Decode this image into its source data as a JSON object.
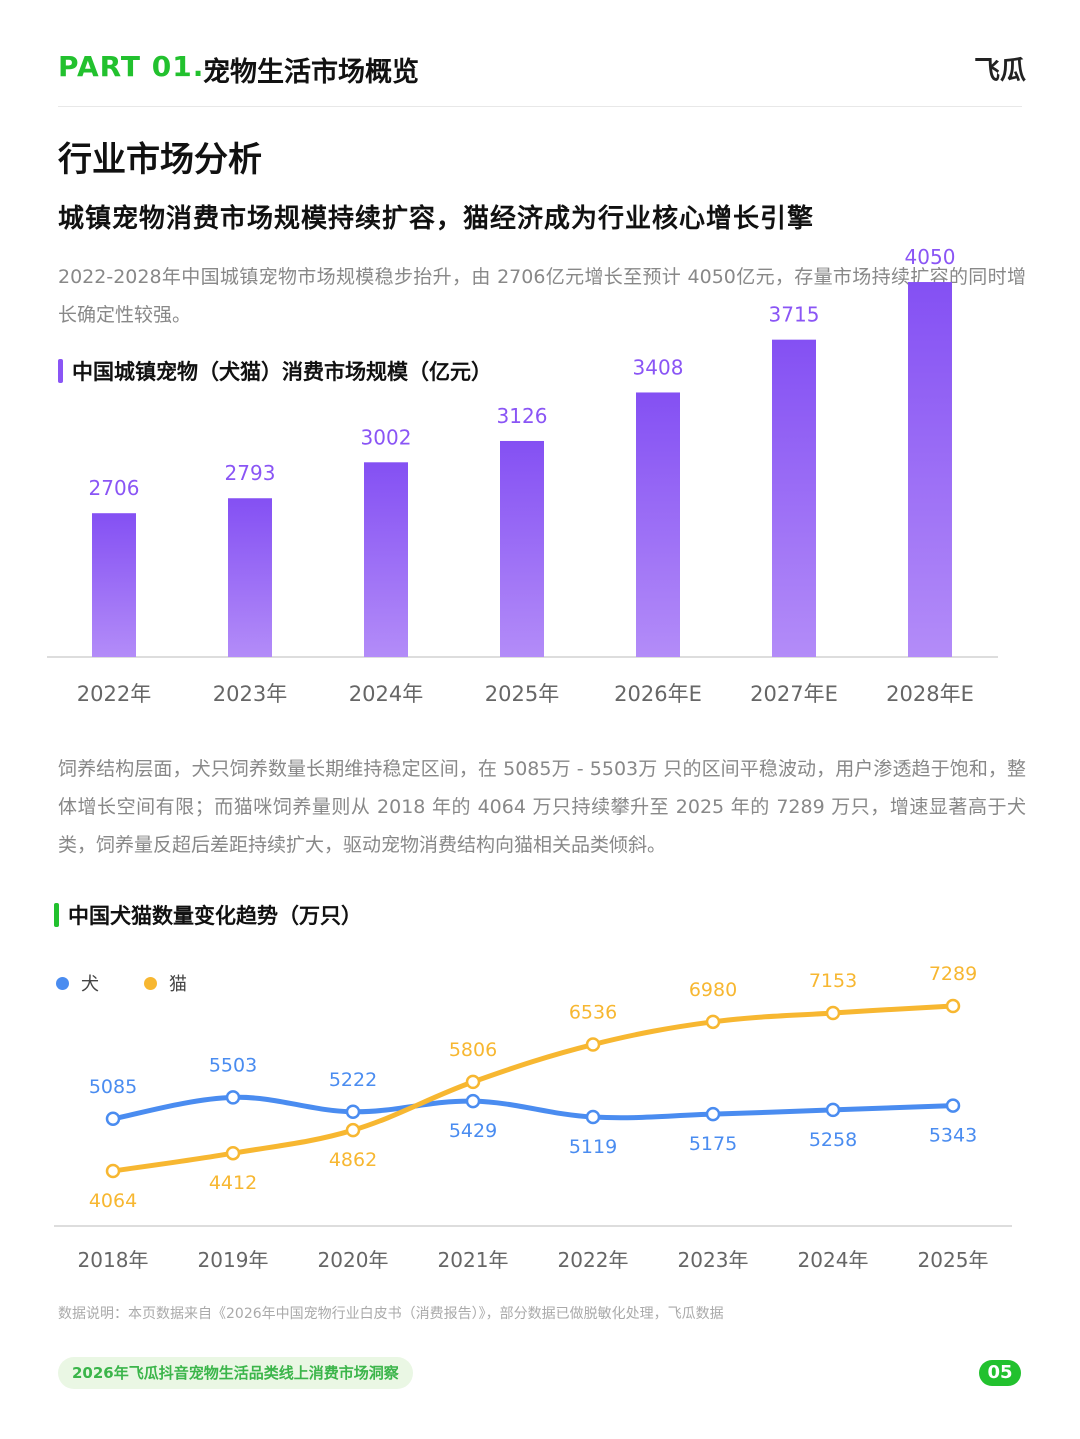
{
  "header": {
    "part_label": "PART 01.",
    "part_title": "宠物生活市场概览",
    "logo_text": "飞瓜"
  },
  "section_title": "行业市场分析",
  "headline": "城镇宠物消费市场规模持续扩容，猫经济成为行业核心增长引擎",
  "paragraph1": "2022-2028年中国城镇宠物市场规模稳步抬升，由 2706亿元增长至预计 4050亿元，存量市场持续扩容的同时增长确定性较强。",
  "paragraph2": "饲养结构层面，犬只饲养数量长期维持稳定区间，在 5085万 - 5503万 只的区间平稳波动，用户渗透趋于饱和，整体增长空间有限；而猫咪饲养量则从 2018 年的 4064 万只持续攀升至 2025 年的 7289 万只，增速显著高于犬类，饲养量反超后差距持续扩大，驱动宠物消费结构向猫相关品类倾斜。",
  "footnote": "数据说明：本页数据来自《2026年中国宠物行业白皮书（消费报告）》，部分数据已做脱敏化处理，飞瓜数据",
  "footer": {
    "report_title": "2026年飞瓜抖音宠物生活品类线上消费市场洞察",
    "page_number": "05"
  },
  "colors": {
    "brand_green": "#22c12e",
    "bar_purple": "#8a55f5",
    "dog_blue": "#4a8cf0",
    "cat_orange": "#f7b731"
  },
  "chart_data": [
    {
      "type": "bar",
      "title": "中国城镇宠物（犬猫）消费市场规模（亿元）",
      "categories": [
        "2022年",
        "2023年",
        "2024年",
        "2025年",
        "2026年E",
        "2027年E",
        "2028年E"
      ],
      "values": [
        2706,
        2793,
        3002,
        3126,
        3408,
        3715,
        4050
      ],
      "ylim": [
        0,
        4300
      ],
      "grid": false
    },
    {
      "type": "line",
      "title": "中国犬猫数量变化趋势（万只）",
      "categories": [
        "2018年",
        "2019年",
        "2020年",
        "2021年",
        "2022年",
        "2023年",
        "2024年",
        "2025年"
      ],
      "series": [
        {
          "name": "犬",
          "values": [
            5085,
            5503,
            5222,
            5429,
            5119,
            5175,
            5258,
            5343
          ]
        },
        {
          "name": "猫",
          "values": [
            4064,
            4412,
            4862,
            5806,
            6536,
            6980,
            7153,
            7289
          ]
        }
      ],
      "legend": "top-left",
      "grid": false
    }
  ]
}
